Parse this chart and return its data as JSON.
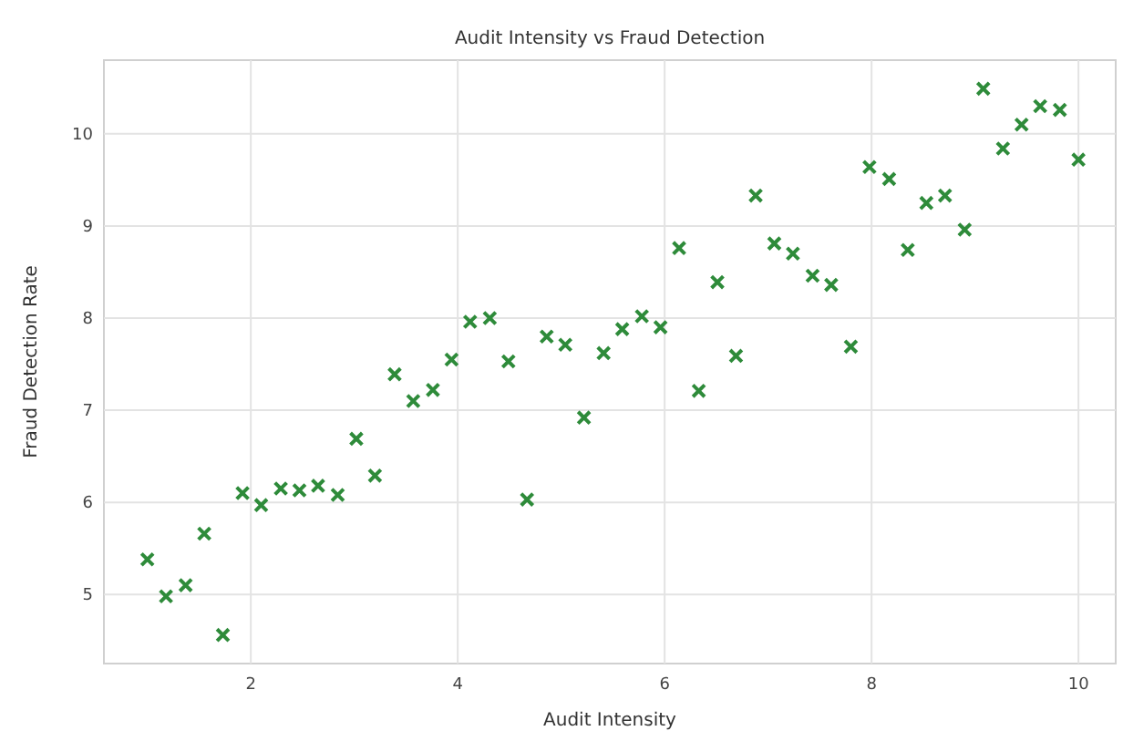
{
  "chart_data": {
    "type": "scatter",
    "title": "Audit Intensity vs Fraud Detection",
    "xlabel": "Audit Intensity",
    "ylabel": "Fraud Detection Rate",
    "x": [
      1.0,
      1.18,
      1.37,
      1.55,
      1.73,
      1.92,
      2.1,
      2.29,
      2.47,
      2.65,
      2.84,
      3.02,
      3.2,
      3.39,
      3.57,
      3.76,
      3.94,
      4.12,
      4.31,
      4.49,
      4.67,
      4.86,
      5.04,
      5.22,
      5.41,
      5.59,
      5.78,
      5.96,
      6.14,
      6.33,
      6.51,
      6.69,
      6.88,
      7.06,
      7.24,
      7.43,
      7.61,
      7.8,
      7.98,
      8.17,
      8.35,
      8.53,
      8.71,
      8.9,
      9.08,
      9.27,
      9.45,
      9.63,
      9.82,
      10.0
    ],
    "series": [
      {
        "color": "#2e8b3a",
        "values": [
          5.38,
          4.98,
          5.1,
          5.66,
          4.56,
          6.1,
          5.97,
          6.15,
          6.13,
          6.18,
          6.08,
          6.69,
          6.29,
          7.39,
          7.1,
          7.22,
          7.55,
          7.96,
          8.0,
          7.53,
          6.03,
          7.8,
          7.71,
          6.92,
          7.62,
          7.88,
          8.02,
          7.9,
          8.76,
          7.21,
          8.39,
          7.59,
          9.33,
          8.81,
          8.7,
          8.46,
          8.36,
          7.69,
          9.64,
          9.51,
          8.74,
          9.25,
          9.33,
          8.96,
          10.49,
          9.84,
          10.1,
          10.3,
          10.26,
          9.72
        ]
      }
    ],
    "xlim": [
      0.58,
      10.36
    ],
    "ylim": [
      4.25,
      10.8
    ],
    "xticks": [
      2,
      4,
      6,
      8,
      10
    ],
    "yticks": [
      5,
      6,
      7,
      8,
      9,
      10
    ],
    "grid": true,
    "marker": "cross"
  }
}
